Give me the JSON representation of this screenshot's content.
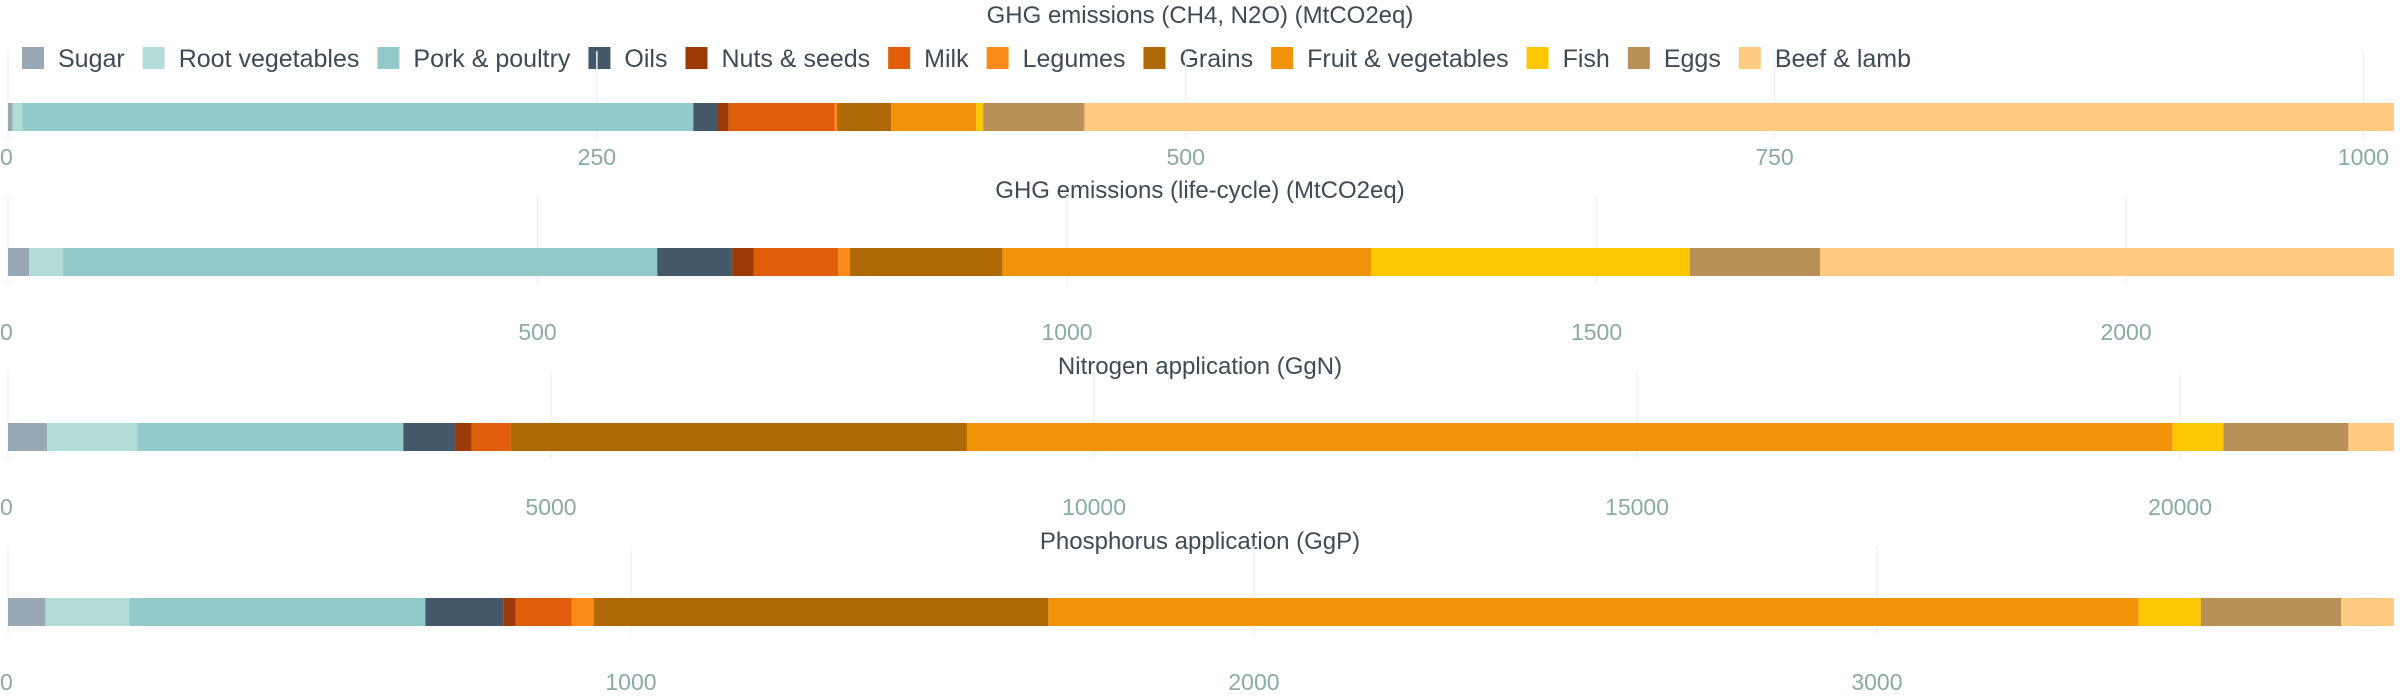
{
  "chart_data": {
    "type": "bar",
    "orientation": "horizontal",
    "stacked": true,
    "grid": true,
    "legend_position": "top",
    "categories": [
      "Sugar",
      "Root vegetables",
      "Pork & poultry",
      "Oils",
      "Nuts & seeds",
      "Milk",
      "Legumes",
      "Grains",
      "Fruit & vegetables",
      "Fish",
      "Eggs",
      "Beef & lamb"
    ],
    "colors": [
      "#9aa8b5",
      "#b2dcd8",
      "#93c9c8",
      "#455869",
      "#9c3a06",
      "#e05d0b",
      "#fb8a17",
      "#b06907",
      "#f29307",
      "#fdc704",
      "#b99158",
      "#fdca80"
    ],
    "panels": [
      {
        "title": "GHG emissions (CH4, N2O) (MtCO2eq)",
        "values": [
          2,
          4,
          285,
          10,
          5,
          45,
          1,
          23,
          36,
          3,
          43,
          556
        ],
        "xlim": [
          0,
          1013
        ],
        "ticks": [
          0,
          250,
          500,
          750,
          1000
        ],
        "tick_labels": [
          "0",
          "250",
          "500",
          "750",
          "1000"
        ]
      },
      {
        "title": "GHG emissions (life-cycle) (MtCO2eq)",
        "values": [
          20,
          32,
          561,
          71,
          20,
          80,
          11,
          144,
          348,
          301,
          123,
          542
        ],
        "xlim": [
          0,
          2253
        ],
        "ticks": [
          0,
          500,
          1000,
          1500,
          2000
        ],
        "tick_labels": [
          "0",
          "500",
          "1000",
          "1500",
          "2000"
        ]
      },
      {
        "title": "Nitrogen application (GgN)",
        "values": [
          360,
          830,
          2450,
          480,
          150,
          360,
          0,
          4200,
          11100,
          470,
          1150,
          420
        ],
        "xlim": [
          0,
          21970
        ],
        "ticks": [
          0,
          5000,
          10000,
          15000,
          20000
        ],
        "tick_labels": [
          "0",
          "5000",
          "10000",
          "15000",
          "20000"
        ]
      },
      {
        "title": "Phosphorus application (GgP)",
        "values": [
          60,
          135,
          475,
          125,
          20,
          90,
          35,
          730,
          1750,
          100,
          225,
          85
        ],
        "xlim": [
          0,
          3830
        ],
        "ticks": [
          0,
          1000,
          2000,
          3000
        ],
        "tick_labels": [
          "0",
          "1000",
          "2000",
          "3000"
        ]
      }
    ]
  }
}
